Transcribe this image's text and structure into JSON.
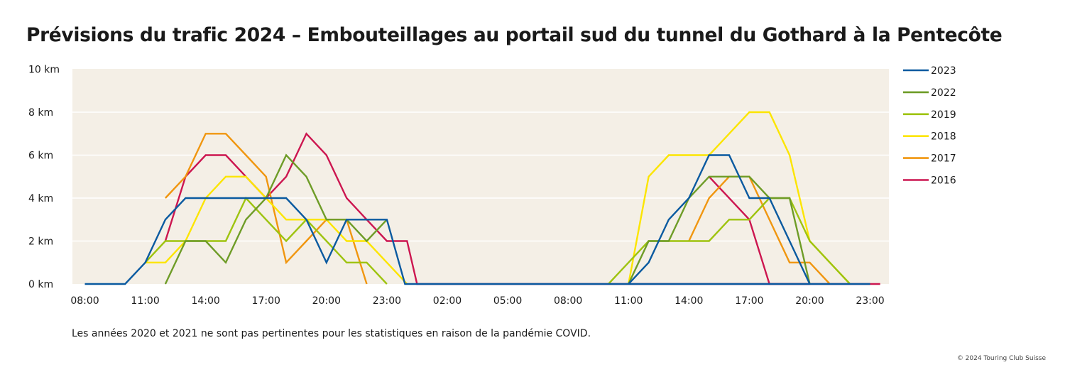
{
  "title": "Prévisions du trafic 2024 – Embouteillages au portail sud du tunnel du Gothard à la Pentecôte",
  "note": "Les années 2020 et 2021 ne sont pas pertinentes pour les statistiques en raison de la pandémie COVID.",
  "copyright": "© 2024 Touring Club Suisse",
  "chart_data": {
    "type": "line",
    "title": "Prévisions du trafic 2024 – Embouteillages au portail sud du tunnel du Gothard à la Pentecôte",
    "x_unit": "hours (08:00 of day 1 = 0)",
    "x_ticks": [
      {
        "x": 0,
        "label": "08:00"
      },
      {
        "x": 3,
        "label": "11:00"
      },
      {
        "x": 6,
        "label": "14:00"
      },
      {
        "x": 9,
        "label": "17:00"
      },
      {
        "x": 12,
        "label": "20:00"
      },
      {
        "x": 15,
        "label": "23:00"
      },
      {
        "x": 18,
        "label": "02:00"
      },
      {
        "x": 21,
        "label": "05:00"
      },
      {
        "x": 24,
        "label": "08:00"
      },
      {
        "x": 27,
        "label": "11:00"
      },
      {
        "x": 30,
        "label": "14:00"
      },
      {
        "x": 33,
        "label": "17:00"
      },
      {
        "x": 36,
        "label": "20:00"
      },
      {
        "x": 39,
        "label": "23:00"
      }
    ],
    "y_ticks": [
      {
        "y": 0,
        "label": "0 km"
      },
      {
        "y": 2,
        "label": "2 km"
      },
      {
        "y": 4,
        "label": "4 km"
      },
      {
        "y": 6,
        "label": "6 km"
      },
      {
        "y": 8,
        "label": "8 km"
      },
      {
        "y": 10,
        "label": "10 km"
      }
    ],
    "ylim": [
      0,
      10
    ],
    "xlim": [
      -0.6,
      40
    ],
    "grid": true,
    "legend_position": "right",
    "background": "#f4efe6",
    "series": [
      {
        "name": "2016",
        "color": "#cc1650",
        "points": [
          [
            4,
            2
          ],
          [
            5,
            5
          ],
          [
            6,
            6
          ],
          [
            7,
            6
          ],
          [
            8,
            5
          ],
          [
            9,
            4
          ],
          [
            10,
            5
          ],
          [
            11,
            7
          ],
          [
            12,
            6
          ],
          [
            13,
            4
          ],
          [
            14,
            3
          ],
          [
            15,
            2
          ],
          [
            16,
            2
          ],
          [
            16.5,
            0
          ],
          [
            39.5,
            0
          ]
        ],
        "sep": [
          [
            31,
            5
          ],
          [
            33,
            3
          ],
          [
            34,
            0
          ],
          [
            36,
            0
          ]
        ]
      },
      {
        "name": "2017",
        "color": "#f0960f",
        "points": [
          [
            4,
            4
          ],
          [
            5,
            5
          ],
          [
            6,
            7
          ],
          [
            7,
            7
          ],
          [
            8,
            6
          ],
          [
            9,
            5
          ],
          [
            10,
            1
          ],
          [
            11,
            2
          ],
          [
            12,
            3
          ],
          [
            13,
            3
          ],
          [
            14,
            0
          ]
        ],
        "sep": [
          [
            30,
            2
          ],
          [
            31,
            4
          ],
          [
            32,
            5
          ],
          [
            33,
            5
          ],
          [
            34,
            3
          ],
          [
            35,
            1
          ],
          [
            36,
            1
          ],
          [
            37,
            0
          ]
        ]
      },
      {
        "name": "2018",
        "color": "#fce500",
        "points": [
          [
            3,
            1
          ],
          [
            4,
            1
          ],
          [
            5,
            2
          ],
          [
            6,
            4
          ],
          [
            7,
            5
          ],
          [
            8,
            5
          ],
          [
            9,
            4
          ],
          [
            10,
            3
          ],
          [
            11,
            3
          ],
          [
            12,
            3
          ],
          [
            13,
            2
          ],
          [
            14,
            2
          ],
          [
            15,
            1
          ],
          [
            16,
            0
          ]
        ],
        "sep": [
          [
            27,
            0
          ],
          [
            28,
            5
          ],
          [
            29,
            6
          ],
          [
            30,
            6
          ],
          [
            31,
            6
          ],
          [
            32,
            7
          ],
          [
            33,
            8
          ],
          [
            34,
            8
          ],
          [
            35,
            6
          ],
          [
            36,
            2
          ],
          [
            37,
            1
          ],
          [
            38,
            0
          ]
        ]
      },
      {
        "name": "2019",
        "color": "#9ec30f",
        "points": [
          [
            3,
            1
          ],
          [
            4,
            2
          ],
          [
            5,
            2
          ],
          [
            6,
            2
          ],
          [
            7,
            2
          ],
          [
            8,
            4
          ],
          [
            9,
            3
          ],
          [
            10,
            2
          ],
          [
            11,
            3
          ],
          [
            12,
            2
          ],
          [
            13,
            1
          ],
          [
            14,
            1
          ],
          [
            15,
            0
          ]
        ],
        "sep": [
          [
            26,
            0
          ],
          [
            27,
            1
          ],
          [
            28,
            2
          ],
          [
            29,
            2
          ],
          [
            30,
            2
          ],
          [
            31,
            2
          ],
          [
            32,
            3
          ],
          [
            33,
            3
          ],
          [
            34,
            4
          ],
          [
            35,
            4
          ],
          [
            36,
            2
          ],
          [
            37,
            1
          ],
          [
            38,
            0
          ]
        ]
      },
      {
        "name": "2022",
        "color": "#6e9c27",
        "points": [
          [
            4,
            0
          ],
          [
            5,
            2
          ],
          [
            6,
            2
          ],
          [
            7,
            1
          ],
          [
            8,
            3
          ],
          [
            9,
            4
          ],
          [
            10,
            6
          ],
          [
            11,
            5
          ],
          [
            12,
            3
          ],
          [
            13,
            3
          ],
          [
            14,
            2
          ],
          [
            15,
            3
          ]
        ],
        "sep": [
          [
            27,
            0
          ],
          [
            28,
            2
          ],
          [
            29,
            2
          ],
          [
            30,
            4
          ],
          [
            31,
            5
          ],
          [
            32,
            5
          ],
          [
            33,
            5
          ],
          [
            34,
            4
          ],
          [
            35,
            4
          ],
          [
            36,
            0
          ]
        ]
      },
      {
        "name": "2023",
        "color": "#0a5aa0",
        "points": [
          [
            0,
            0
          ],
          [
            1,
            0
          ],
          [
            2,
            0
          ],
          [
            3,
            1
          ],
          [
            4,
            3
          ],
          [
            5,
            4
          ],
          [
            6,
            4
          ],
          [
            7,
            4
          ],
          [
            8,
            4
          ],
          [
            9,
            4
          ],
          [
            10,
            4
          ],
          [
            11,
            3
          ],
          [
            12,
            1
          ],
          [
            13,
            3
          ],
          [
            14,
            3
          ],
          [
            15,
            3
          ],
          [
            15.9,
            0
          ],
          [
            39,
            0
          ]
        ],
        "sep": [
          [
            27,
            0
          ],
          [
            28,
            1
          ],
          [
            29,
            3
          ],
          [
            30,
            4
          ],
          [
            31,
            6
          ],
          [
            32,
            6
          ],
          [
            33,
            4
          ],
          [
            34,
            4
          ],
          [
            35,
            2
          ],
          [
            36,
            0
          ]
        ]
      }
    ],
    "legend_order": [
      "2023",
      "2022",
      "2019",
      "2018",
      "2017",
      "2016"
    ]
  }
}
